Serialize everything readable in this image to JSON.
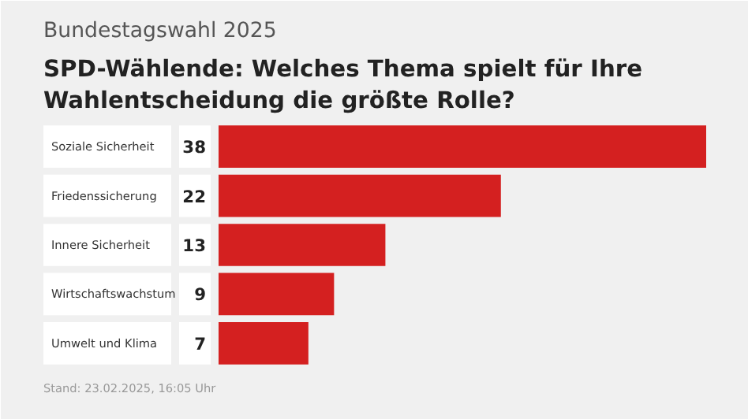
{
  "chart_data": {
    "type": "bar",
    "orientation": "horizontal",
    "subtitle": "Bundestagswahl 2025",
    "title": "SPD-Wählende: Welches Thema spielt für Ihre Wahlentscheidung die größte Rolle?",
    "categories": [
      "Soziale Sicherheit",
      "Friedenssicherung",
      "Innere Sicherheit",
      "Wirtschaftswachstum",
      "Umwelt und Klima"
    ],
    "values": [
      38,
      22,
      13,
      9,
      7
    ],
    "color": "#d42020",
    "data_labels": true,
    "grid": false,
    "annotations": [
      "Stand: 23.02.2025, 16:05 Uhr"
    ]
  }
}
